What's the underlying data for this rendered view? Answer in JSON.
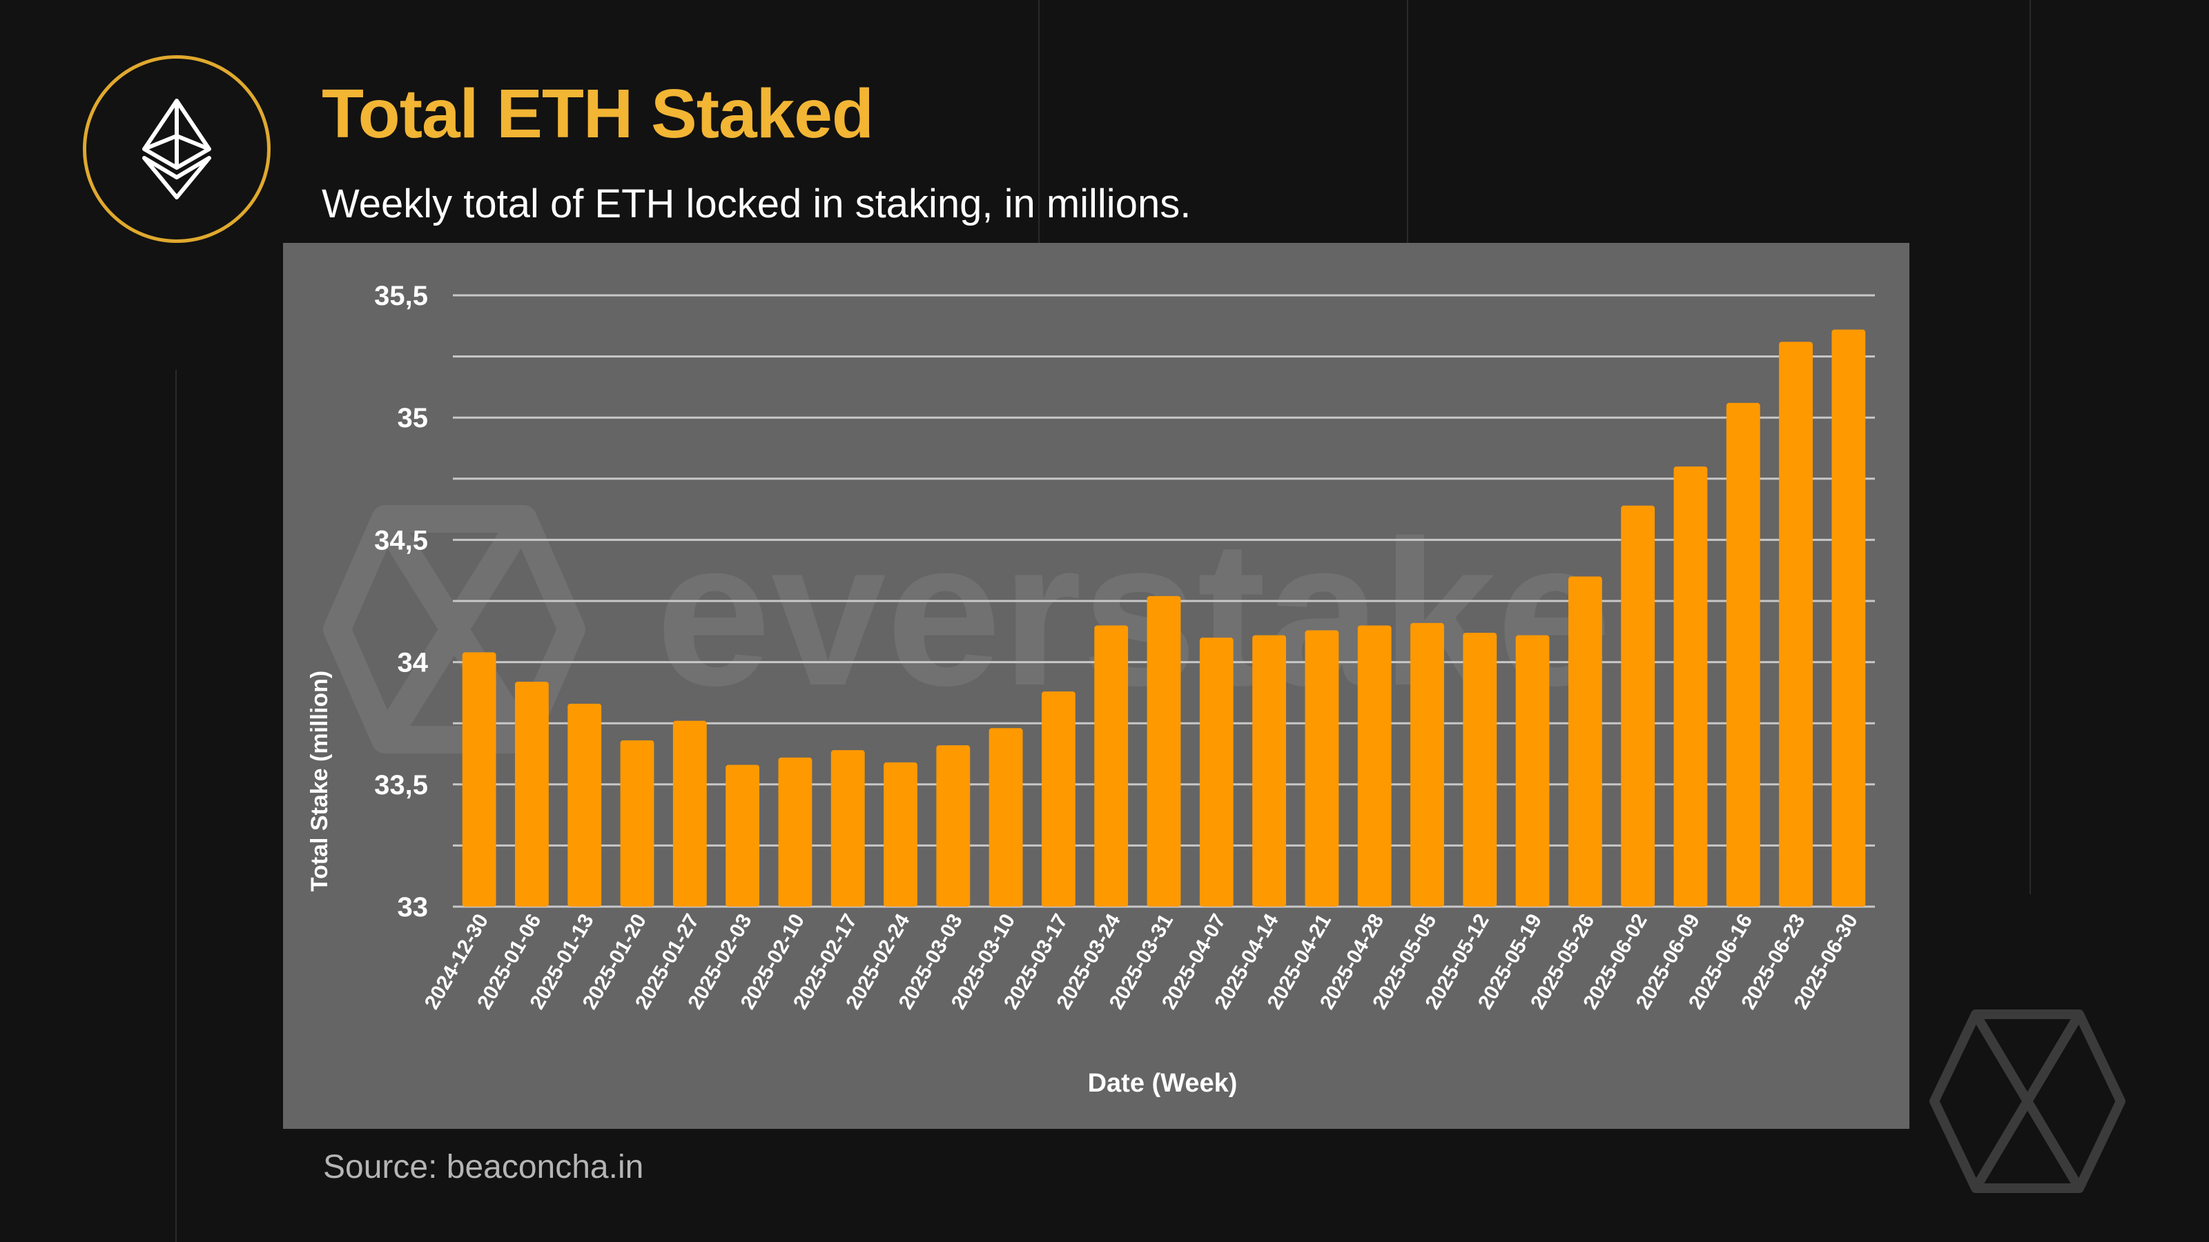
{
  "header": {
    "title": "Total ETH Staked",
    "subtitle": "Weekly total of ETH locked in staking, in millions."
  },
  "watermark": {
    "text": "everstake"
  },
  "source": "Source: beaconcha.in",
  "icons": {
    "header_logo": "ethereum-icon",
    "corner_logo": "everstake-logo-icon"
  },
  "colors": {
    "background": "#121212",
    "title": "#f2b534",
    "accent_ring": "#e0a92e",
    "panel": "#656565",
    "bar": "#ff9900",
    "gridline": "#c8c8c8"
  },
  "chart_data": {
    "type": "bar",
    "xlabel": "Date (Week)",
    "ylabel": "Total Stake (million)",
    "ylim": [
      33,
      35.5
    ],
    "yticks": [
      "33",
      "33,5",
      "34",
      "34,5",
      "35",
      "35,5"
    ],
    "grid": true,
    "categories": [
      "2024-12-30",
      "2025-01-06",
      "2025-01-13",
      "2025-01-20",
      "2025-01-27",
      "2025-02-03",
      "2025-02-10",
      "2025-02-17",
      "2025-02-24",
      "2025-03-03",
      "2025-03-10",
      "2025-03-17",
      "2025-03-24",
      "2025-03-31",
      "2025-04-07",
      "2025-04-14",
      "2025-04-21",
      "2025-04-28",
      "2025-05-05",
      "2025-05-12",
      "2025-05-19",
      "2025-05-26",
      "2025-06-02",
      "2025-06-09",
      "2025-06-16",
      "2025-06-23",
      "2025-06-30"
    ],
    "values": [
      34.04,
      33.92,
      33.83,
      33.68,
      33.76,
      33.58,
      33.61,
      33.64,
      33.59,
      33.66,
      33.73,
      33.88,
      34.15,
      34.27,
      34.1,
      34.11,
      34.13,
      34.15,
      34.16,
      34.12,
      34.11,
      34.35,
      34.64,
      34.8,
      35.06,
      35.31,
      35.36
    ]
  }
}
